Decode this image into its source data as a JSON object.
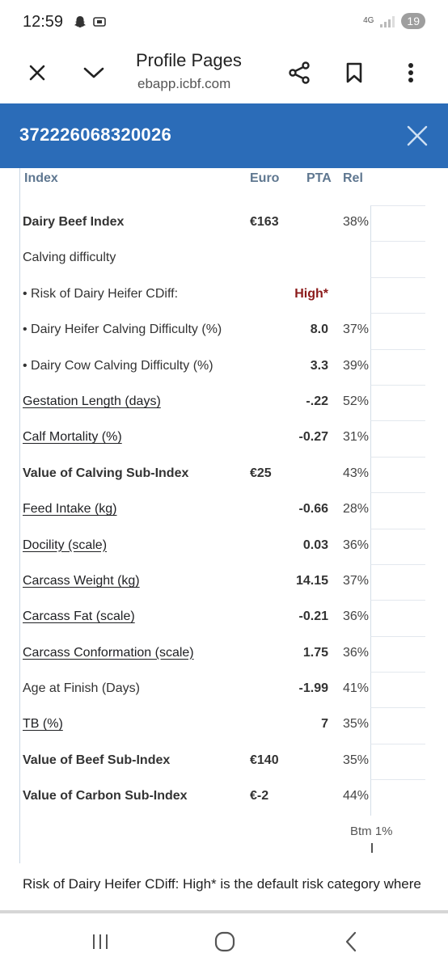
{
  "status_bar": {
    "time": "12:59",
    "network": "4G",
    "battery": "19"
  },
  "browser": {
    "title": "Profile Pages",
    "url": "ebapp.icbf.com"
  },
  "app_bar": {
    "title": "372226068320026"
  },
  "table": {
    "headers": {
      "index": "Index",
      "euro": "Euro",
      "pta": "PTA",
      "rel": "Rel"
    },
    "rows": [
      {
        "label": "Dairy Beef Index",
        "euro": "€163",
        "pta": "",
        "rel": "38%",
        "style": "bold"
      },
      {
        "label": "Calving difficulty",
        "euro": "",
        "pta": "",
        "rel": "",
        "style": "plain"
      },
      {
        "label": "• Risk of Dairy Heifer CDiff:",
        "euro": "",
        "pta": "High*",
        "rel": "",
        "style": "plain"
      },
      {
        "label": "• Dairy Heifer Calving Difficulty (%)",
        "euro": "",
        "pta": "8.0",
        "rel": "37%",
        "style": "plain"
      },
      {
        "label": "• Dairy Cow Calving Difficulty (%)",
        "euro": "",
        "pta": "3.3",
        "rel": "39%",
        "style": "plain"
      },
      {
        "label": "Gestation Length (days)",
        "euro": "",
        "pta": "-.22",
        "rel": "52%",
        "style": "link"
      },
      {
        "label": "Calf Mortality (%)",
        "euro": "",
        "pta": "-0.27",
        "rel": "31%",
        "style": "link"
      },
      {
        "label": "Value of Calving Sub-Index",
        "euro": "€25",
        "pta": "",
        "rel": "43%",
        "style": "bold"
      },
      {
        "label": "Feed Intake (kg)",
        "euro": "",
        "pta": "-0.66",
        "rel": "28%",
        "style": "link"
      },
      {
        "label": "Docility (scale)",
        "euro": "",
        "pta": "0.03",
        "rel": "36%",
        "style": "link"
      },
      {
        "label": "Carcass Weight (kg)",
        "euro": "",
        "pta": "14.15",
        "rel": "37%",
        "style": "link"
      },
      {
        "label": "Carcass Fat (scale)",
        "euro": "",
        "pta": "-0.21",
        "rel": "36%",
        "style": "link"
      },
      {
        "label": "Carcass Conformation (scale)",
        "euro": "",
        "pta": "1.75",
        "rel": "36%",
        "style": "link"
      },
      {
        "label": "Age at Finish (Days)",
        "euro": "",
        "pta": "-1.99",
        "rel": "41%",
        "style": "plain"
      },
      {
        "label": "TB (%)",
        "euro": "",
        "pta": "7",
        "rel": "35%",
        "style": "link"
      },
      {
        "label": "Value of Beef Sub-Index",
        "euro": "€140",
        "pta": "",
        "rel": "35%",
        "style": "bold"
      },
      {
        "label": "Value of Carbon Sub-Index",
        "euro": "€-2",
        "pta": "",
        "rel": "44%",
        "style": "bold"
      }
    ]
  },
  "scale_label": "Btm 1%",
  "footnote": "Risk of Dairy Heifer CDiff: High* is the default risk category where",
  "colors": {
    "app_bar": "#2b6cb8",
    "high_risk": "#8b1a1a",
    "header_text": "#5f7790"
  }
}
